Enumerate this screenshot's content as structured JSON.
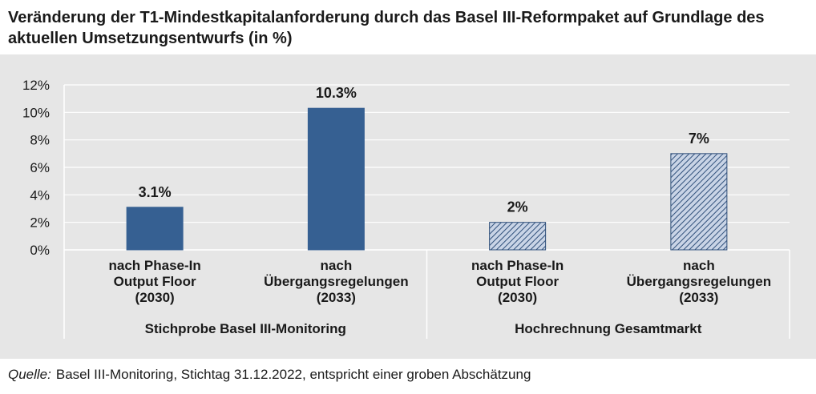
{
  "title": "Veränderung der T1-Mindestkapitalanforderung durch das Basel III-Reformpaket auf Grundlage des aktuellen Umsetzungsentwurfs (in %)",
  "source": {
    "label": "Quelle:",
    "text": "Basel III-Monitoring, Stichtag 31.12.2022, entspricht einer groben Abschätzung"
  },
  "colors": {
    "bar_solid": "#366092",
    "bar_hatched_fill": "#c9d4e6",
    "bar_hatched_line": "#2f4f7a",
    "background": "#e6e6e6"
  },
  "chart_data": {
    "type": "bar",
    "ylim": [
      0,
      12
    ],
    "yticks": [
      "0%",
      "2%",
      "4%",
      "6%",
      "8%",
      "10%",
      "12%"
    ],
    "grid": true,
    "categories": [
      [
        "nach Phase-In",
        "Output Floor",
        "(2030)"
      ],
      [
        "nach",
        "Übergangsregelungen",
        "(2033)"
      ],
      [
        "nach Phase-In",
        "Output Floor",
        "(2030)"
      ],
      [
        "nach",
        "Übergangsregelungen",
        "(2033)"
      ]
    ],
    "groups": [
      "Stichprobe Basel III-Monitoring",
      "Hochrechnung Gesamtmarkt"
    ],
    "values": [
      3.1,
      10.3,
      2,
      7
    ],
    "data_labels": [
      "3.1%",
      "10.3%",
      "2%",
      "7%"
    ],
    "bar_style": [
      "solid",
      "solid",
      "hatched",
      "hatched"
    ]
  }
}
